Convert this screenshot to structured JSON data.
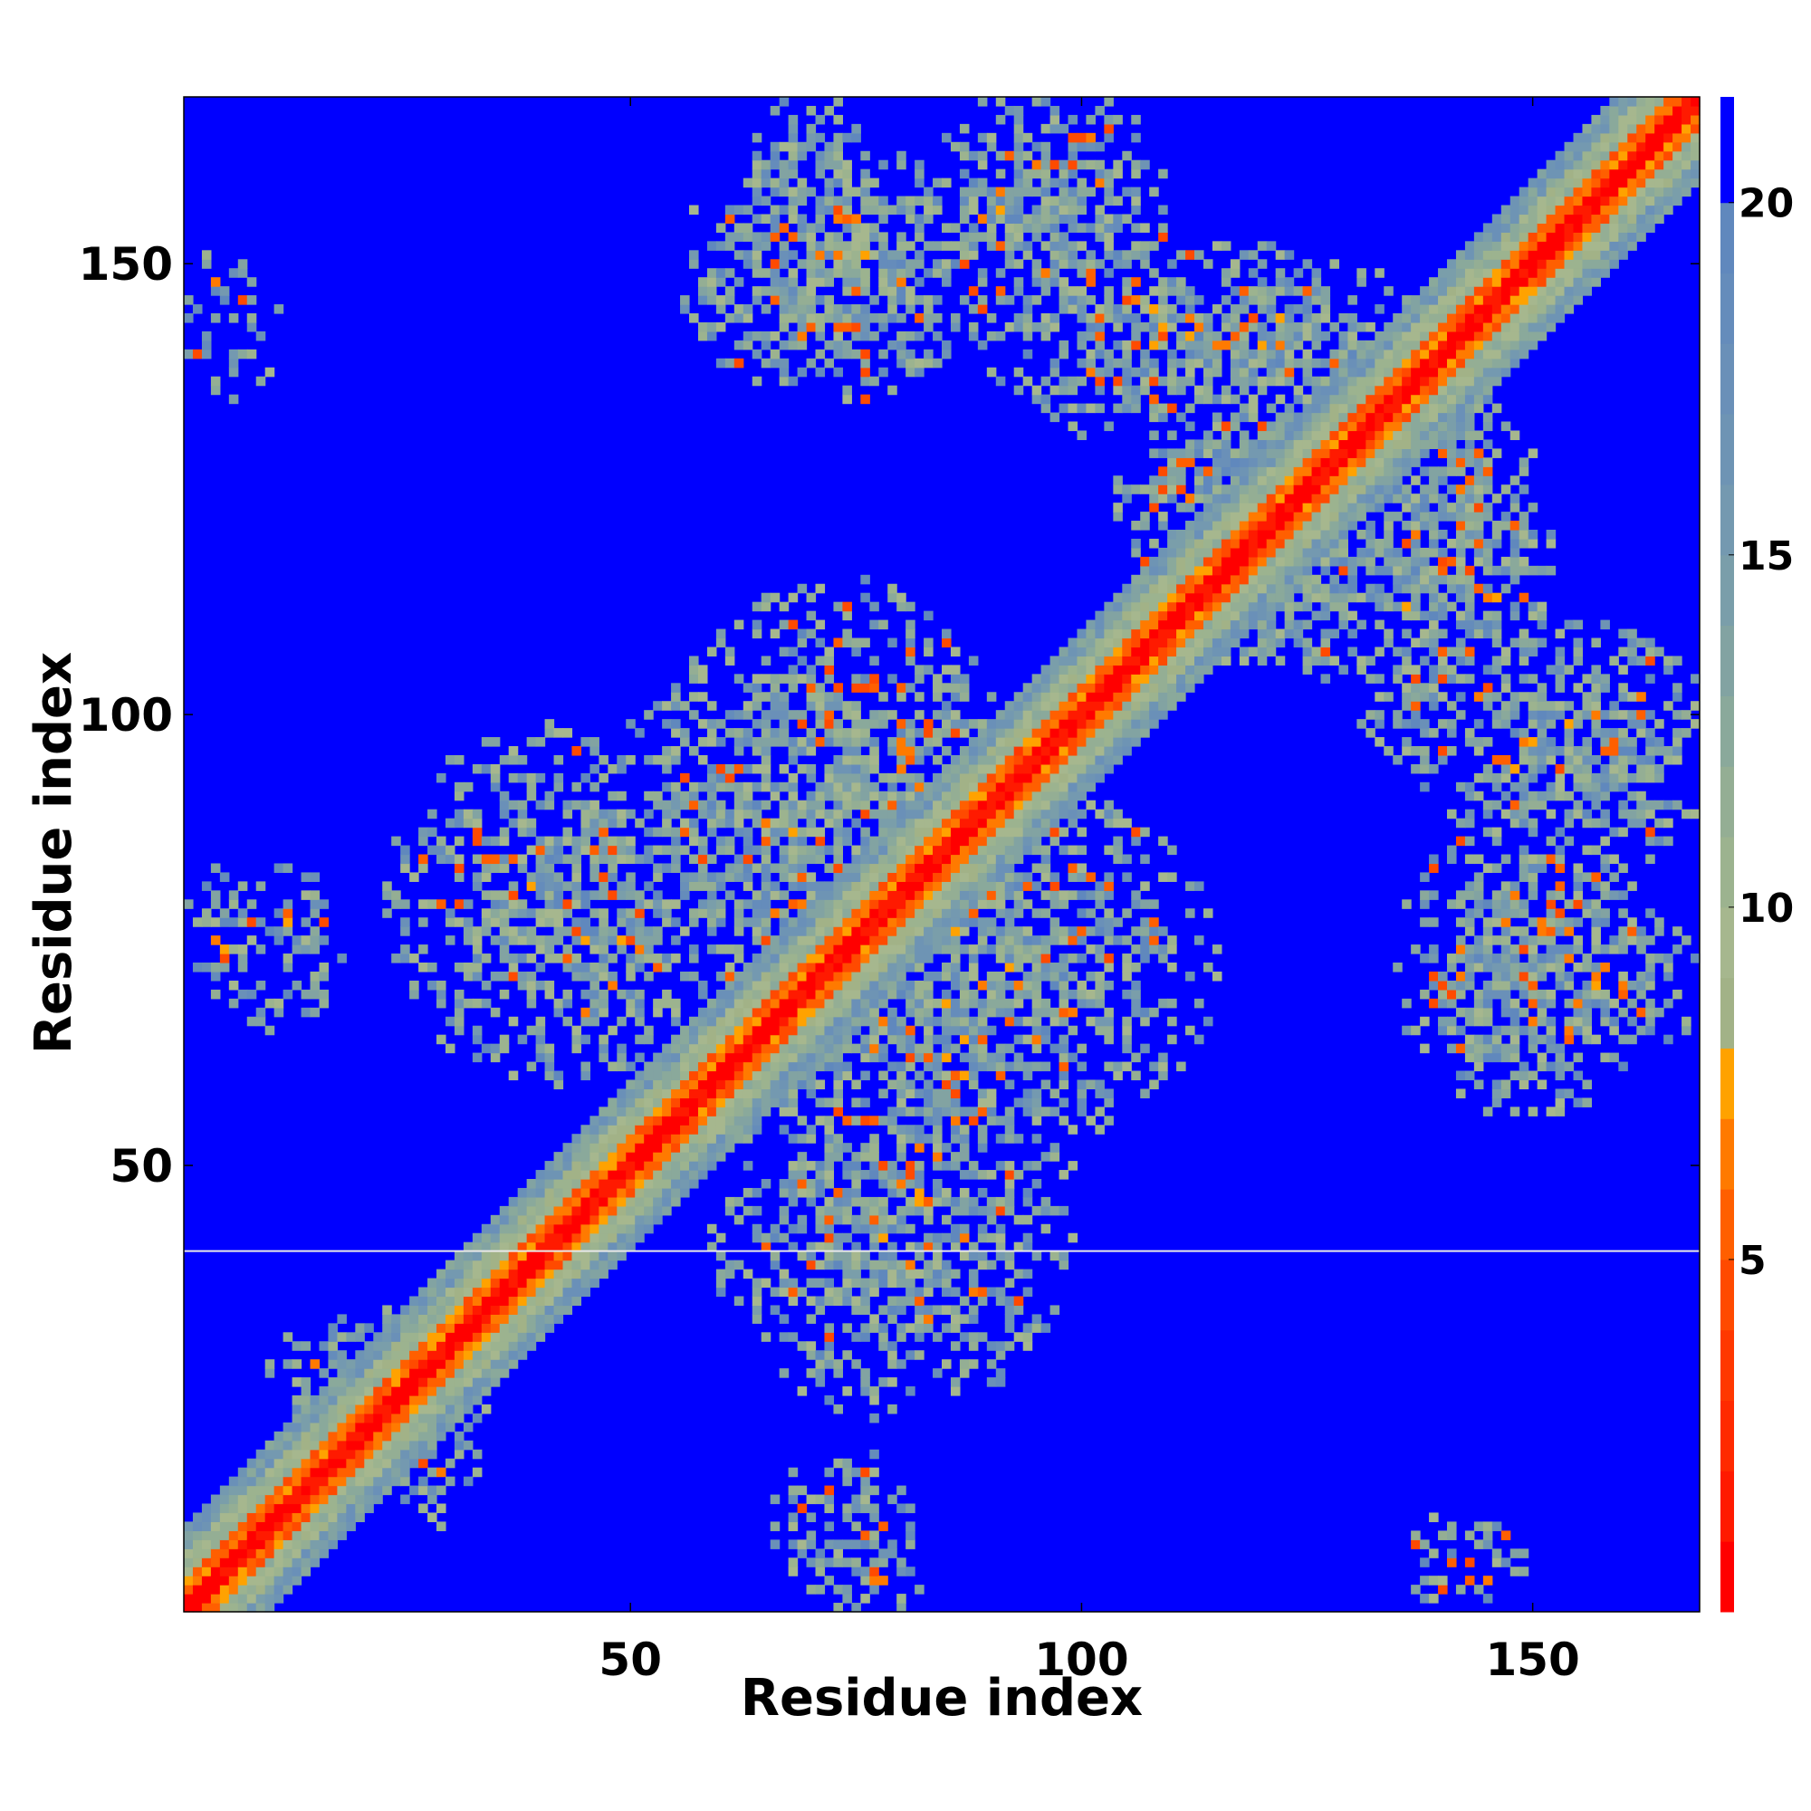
{
  "chart_data": {
    "type": "heatmap",
    "title": "",
    "xlabel": "Residue index",
    "ylabel": "Residue index",
    "n_residues": 168,
    "xlim": [
      0.5,
      168.5
    ],
    "ylim": [
      0.5,
      168.5
    ],
    "xticks": [
      50,
      100,
      150
    ],
    "yticks": [
      50,
      100,
      150
    ],
    "xtick_labels": [
      "50",
      "100",
      "150"
    ],
    "ytick_labels": [
      "50",
      "100",
      "150"
    ],
    "colorbar": {
      "range": [
        0,
        21.5
      ],
      "ticks": [
        5,
        10,
        15,
        20
      ],
      "tick_labels": [
        "5",
        "10",
        "15",
        "20"
      ],
      "levels": [
        {
          "max": 1,
          "color": "#ff0000"
        },
        {
          "max": 2,
          "color": "#ff1a00"
        },
        {
          "max": 3,
          "color": "#ff2a00"
        },
        {
          "max": 4,
          "color": "#ff3800"
        },
        {
          "max": 5,
          "color": "#ff4a00"
        },
        {
          "max": 6,
          "color": "#ff5f00"
        },
        {
          "max": 7,
          "color": "#ff7a00"
        },
        {
          "max": 8,
          "color": "#ffa200"
        },
        {
          "max": 9,
          "color": "#a2b287"
        },
        {
          "max": 10,
          "color": "#a6b78e"
        },
        {
          "max": 11,
          "color": "#9cb38f"
        },
        {
          "max": 12,
          "color": "#94ae94"
        },
        {
          "max": 13,
          "color": "#8aa99b"
        },
        {
          "max": 14,
          "color": "#82a3a2"
        },
        {
          "max": 15,
          "color": "#7a9eaa"
        },
        {
          "max": 16,
          "color": "#7499b0"
        },
        {
          "max": 17,
          "color": "#6e94b4"
        },
        {
          "max": 18,
          "color": "#6a90b8"
        },
        {
          "max": 19,
          "color": "#658cbb"
        },
        {
          "max": 20,
          "color": "#6088bd"
        },
        {
          "max": 21.5,
          "color": "#0000ff"
        }
      ]
    },
    "diagonal_band": {
      "core_width": 1.5,
      "orange_width": 3,
      "green_width": 6,
      "blue_width": 9
    },
    "contact_regions": [
      {
        "x": [
          62,
          78
        ],
        "y": [
          137,
          167
        ],
        "level": 0.55
      },
      {
        "x": [
          84,
          108
        ],
        "y": [
          140,
          168
        ],
        "level": 0.55
      },
      {
        "x": [
          92,
          132
        ],
        "y": [
          131,
          150
        ],
        "level": 0.55
      },
      {
        "x": [
          106,
          130
        ],
        "y": [
          110,
          138
        ],
        "level": 0.6
      },
      {
        "x": [
          132,
          150
        ],
        "y": [
          102,
          136
        ],
        "level": 0.6
      },
      {
        "x": [
          145,
          165
        ],
        "y": [
          88,
          102
        ],
        "level": 0.6
      },
      {
        "x": [
          137,
          162
        ],
        "y": [
          58,
          86
        ],
        "level": 0.6
      },
      {
        "x": [
          27,
          60
        ],
        "y": [
          64,
          90
        ],
        "level": 0.55
      },
      {
        "x": [
          55,
          90
        ],
        "y": [
          66,
          112
        ],
        "level": 0.55
      },
      {
        "x": [
          68,
          103
        ],
        "y": [
          47,
          88
        ],
        "level": 0.55
      },
      {
        "x": [
          62,
          96
        ],
        "y": [
          25,
          60
        ],
        "level": 0.5
      },
      {
        "x": [
          22,
          33
        ],
        "y": [
          12,
          33
        ],
        "level": 0.4
      },
      {
        "x": [
          1,
          10
        ],
        "y": [
          137,
          150
        ],
        "level": 0.35
      },
      {
        "x": [
          1,
          14
        ],
        "y": [
          68,
          82
        ],
        "level": 0.35
      },
      {
        "x": [
          67,
          82
        ],
        "y": [
          3,
          17
        ],
        "level": 0.35
      },
      {
        "x": [
          136,
          146
        ],
        "y": [
          3,
          10
        ],
        "level": 0.35
      }
    ],
    "horizontal_line_at_y": 40.5,
    "grid": false,
    "legend": "none"
  }
}
